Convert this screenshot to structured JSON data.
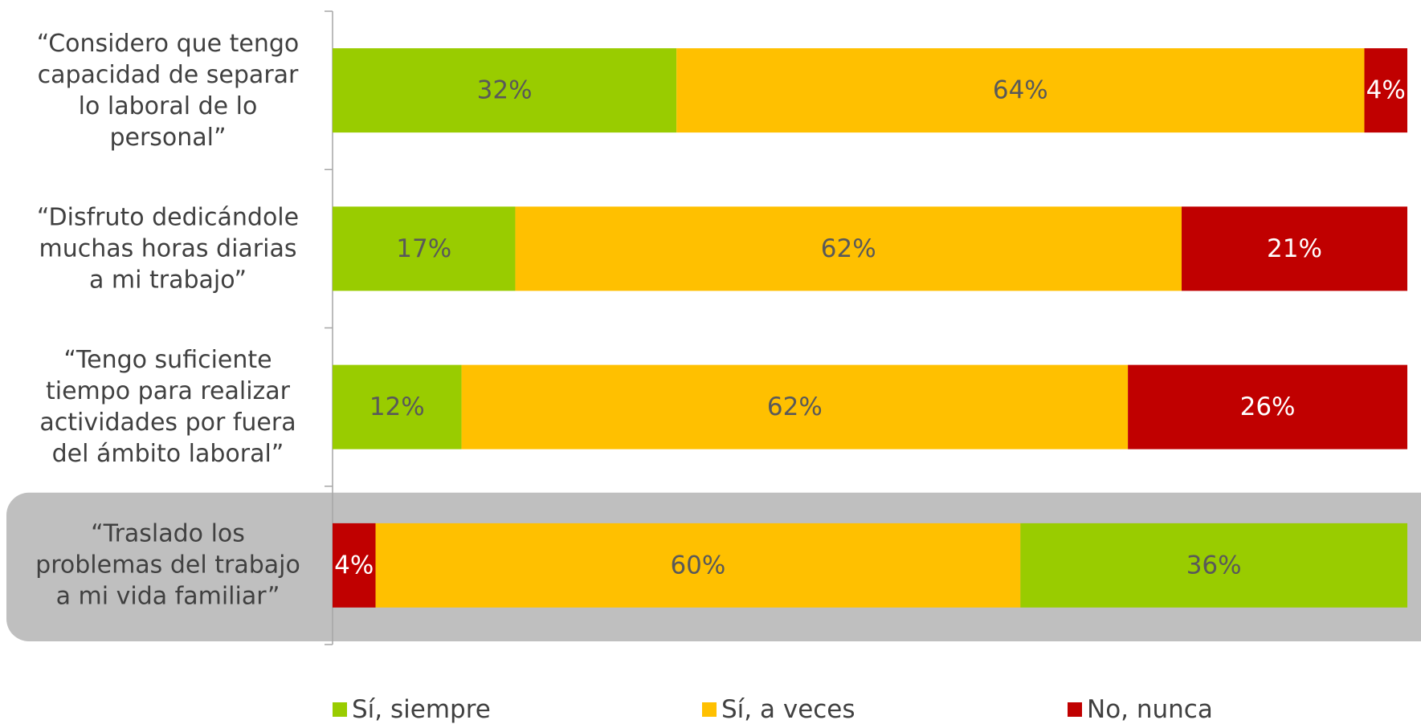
{
  "chart_data": {
    "type": "stacked-bar-horizontal",
    "categories": [
      "“Considero que tengo\ncapacidad de separar\nlo laboral de lo\npersonal”",
      "“Disfruto dedicándole\nmuchas horas diarias\na mi trabajo”",
      "“Tengo suficiente\ntiempo para realizar\nactividades por fuera\ndel ámbito laboral”",
      "“Traslado los\nproblemas del trabajo\na mi vida familiar”"
    ],
    "series": [
      {
        "name": "Sí, siempre",
        "color": "#99cc00",
        "label_color": "#595959",
        "values": [
          32,
          17,
          12,
          36
        ],
        "value_labels": [
          "32%",
          "17%",
          "12%",
          "36%"
        ]
      },
      {
        "name": "Sí, a veces",
        "color": "#ffc000",
        "label_color": "#595959",
        "values": [
          64,
          62,
          62,
          60
        ],
        "value_labels": [
          "64%",
          "62%",
          "62%",
          "60%"
        ]
      },
      {
        "name": "No, nunca",
        "color": "#c00000",
        "label_color": "#ffffff",
        "values": [
          4,
          21,
          26,
          4
        ],
        "value_labels": [
          "4%",
          "21%",
          "26%",
          "4%"
        ]
      }
    ],
    "reversed_stack": [
      false,
      false,
      false,
      true
    ],
    "highlight": 3,
    "xlim": [
      0,
      100
    ]
  }
}
